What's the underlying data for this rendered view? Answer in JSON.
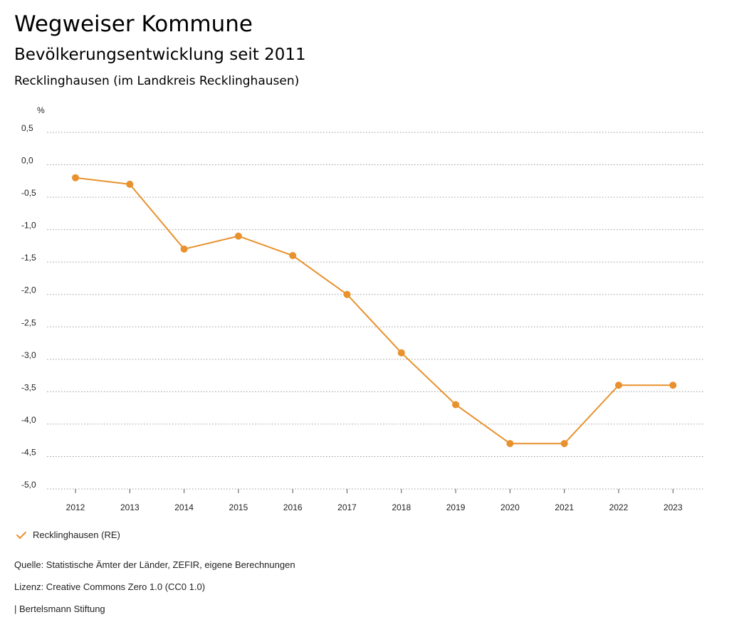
{
  "header": {
    "title": "Wegweiser Kommune",
    "subtitle": "Bevölkerungsentwicklung seit 2011",
    "region": "Recklinghausen (im Landkreis Recklinghausen)"
  },
  "chart_data": {
    "type": "line",
    "ylabel": "%",
    "ylim": [
      -5.0,
      0.5
    ],
    "yticks": [
      "0,5",
      "0,0",
      "-0,5",
      "-1,0",
      "-1,5",
      "-2,0",
      "-2,5",
      "-3,0",
      "-3,5",
      "-4,0",
      "-4,5",
      "-5,0"
    ],
    "x": [
      "2012",
      "2013",
      "2014",
      "2015",
      "2016",
      "2017",
      "2018",
      "2019",
      "2020",
      "2021",
      "2022",
      "2023"
    ],
    "series": [
      {
        "name": "Recklinghausen (RE)",
        "color": "#E8912D",
        "values": [
          -0.2,
          -0.3,
          -1.3,
          -1.1,
          -1.4,
          -2.0,
          -2.9,
          -3.7,
          -4.3,
          -4.3,
          -3.4,
          -3.4
        ]
      }
    ],
    "grid": true,
    "legend_position": "bottom-left"
  },
  "footer": {
    "source": "Quelle: Statistische Ämter der Länder, ZEFIR, eigene Berechnungen",
    "license": "Lizenz: Creative Commons Zero 1.0 (CC0 1.0)",
    "publisher": "| Bertelsmann Stiftung"
  }
}
